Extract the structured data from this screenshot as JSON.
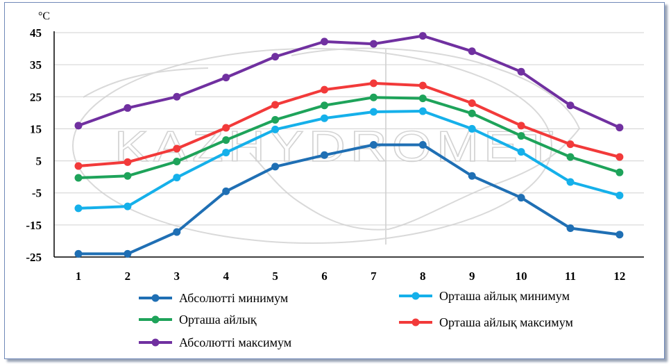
{
  "chart_data": {
    "type": "line",
    "unit_label": "°C",
    "x": [
      1,
      2,
      3,
      4,
      5,
      6,
      7,
      8,
      9,
      10,
      11,
      12
    ],
    "yticks": [
      -25,
      -15,
      -5,
      5,
      15,
      25,
      35,
      45
    ],
    "ylim": [
      -25,
      45
    ],
    "grid": "horizontal",
    "legend_position": "bottom",
    "series": [
      {
        "name": "Абсолютті минимум",
        "color": "#1f6fb4",
        "values": [
          -24,
          -24,
          -17.2,
          -4.5,
          3.2,
          6.8,
          10,
          10,
          0.3,
          -6.5,
          -16,
          -18
        ]
      },
      {
        "name": "Орташа айлық минимум",
        "color": "#15b0ea",
        "values": [
          -9.8,
          -9.2,
          -0.2,
          7.6,
          14.8,
          18.3,
          20.3,
          20.5,
          15,
          7.8,
          -1.6,
          -5.8
        ]
      },
      {
        "name": "Орташа айлық",
        "color": "#1ea35a",
        "values": [
          -0.3,
          0.3,
          4.8,
          11.5,
          17.8,
          22.3,
          24.8,
          24.5,
          19.8,
          12.8,
          6.2,
          1.4
        ]
      },
      {
        "name": "Орташа айлық максимум",
        "color": "#f23a3a",
        "values": [
          3.4,
          4.6,
          8.8,
          15.3,
          22.5,
          27.2,
          29.2,
          28.5,
          23,
          16,
          10.2,
          6.2
        ]
      },
      {
        "name": "Абсолютті максимум",
        "color": "#7030a0",
        "values": [
          16,
          21.5,
          25,
          31,
          37.5,
          42.2,
          41.5,
          44,
          39.2,
          32.8,
          22.3,
          15.4
        ]
      }
    ]
  },
  "watermark": {
    "text": "KAZHYDROMET"
  }
}
